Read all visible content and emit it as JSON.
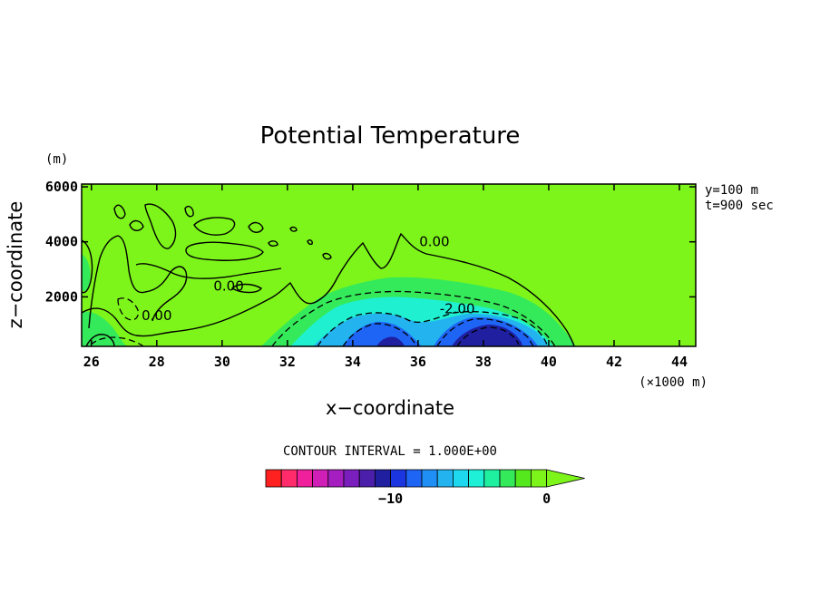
{
  "chart_data": {
    "type": "contour",
    "title": "Potential Temperature",
    "xlabel": "x−coordinate",
    "ylabel": "z−coordinate",
    "x_unit": "(×1000 m)",
    "y_unit": "(m)",
    "xlim": [
      25.7,
      44.5
    ],
    "ylim": [
      200,
      6100
    ],
    "x_ticks": [
      26,
      28,
      30,
      32,
      34,
      36,
      38,
      40,
      42,
      44
    ],
    "y_ticks": [
      2000,
      4000,
      6000
    ],
    "annotation_lines": [
      "y=100 m",
      "t=900 sec"
    ],
    "contour_interval_text": "CONTOUR INTERVAL = 1.000E+00",
    "contour_labels": [
      {
        "text": "0.00",
        "x": 36.5,
        "y": 3850
      },
      {
        "text": "0.00",
        "x": 30.2,
        "y": 2220
      },
      {
        "text": "0.00",
        "x": 28.0,
        "y": 1150
      },
      {
        "text": "-2.00",
        "x": 37.2,
        "y": 1400
      }
    ],
    "colorbar": {
      "ticks": [
        {
          "value": -10,
          "label": "−10"
        },
        {
          "value": 0,
          "label": "0"
        }
      ],
      "colors": [
        "#ff2020",
        "#ff2b6b",
        "#f0209c",
        "#cf1fb6",
        "#a51fc0",
        "#7a1fbe",
        "#4b1faa",
        "#1f1fa0",
        "#1b35e0",
        "#1e64f5",
        "#1f8ef5",
        "#23b4f0",
        "#1ed8f0",
        "#1ef0d8",
        "#1ef0a0",
        "#35ea5a",
        "#55e81c",
        "#7df51a"
      ]
    },
    "colors": {
      "background_field": "#7df51a",
      "light_green": "#35ea5a",
      "cyan": "#1ef0d0",
      "sky": "#23b4f0",
      "blue": "#1e64f5",
      "deep_blue": "#1f1fa0"
    }
  }
}
